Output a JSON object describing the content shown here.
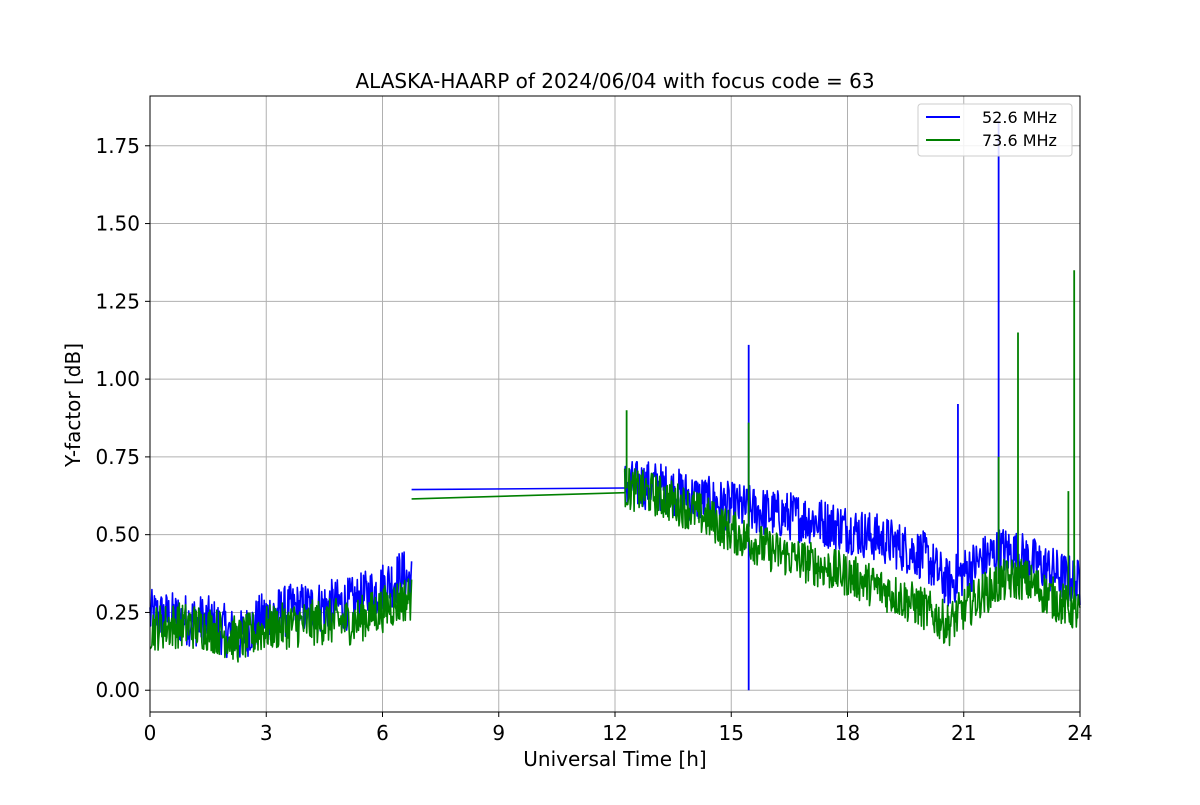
{
  "chart_data": {
    "type": "line",
    "title": "ALASKA-HAARP of 2024/06/04 with focus code = 63",
    "xlabel": "Universal Time [h]",
    "ylabel": "Y-factor [dB]",
    "xlim": [
      0,
      24
    ],
    "ylim": [
      -0.07,
      1.91
    ],
    "xticks": [
      0,
      3,
      6,
      9,
      12,
      15,
      18,
      21,
      24
    ],
    "xtick_labels": [
      "0",
      "3",
      "6",
      "9",
      "12",
      "15",
      "18",
      "21",
      "24"
    ],
    "yticks": [
      0.0,
      0.25,
      0.5,
      0.75,
      1.0,
      1.25,
      1.5,
      1.75
    ],
    "ytick_labels": [
      "0.00",
      "0.25",
      "0.50",
      "0.75",
      "1.00",
      "1.25",
      "1.50",
      "1.75"
    ],
    "grid": true,
    "legend_position": "top-right",
    "series": [
      {
        "name": "52.6 MHz",
        "color": "#0000ff",
        "segments": [
          {
            "x": [
              0.0,
              0.75,
              1.5,
              2.3,
              3.0,
              3.75,
              4.5,
              5.25,
              6.0,
              6.5,
              6.75
            ],
            "y": [
              0.24,
              0.23,
              0.22,
              0.17,
              0.24,
              0.26,
              0.27,
              0.28,
              0.33,
              0.37,
              0.35
            ],
            "noise": 0.085
          },
          {
            "x": [
              6.75,
              12.25
            ],
            "y": [
              0.645,
              0.65
            ],
            "noise": 0
          },
          {
            "x": [
              12.25,
              13.0,
              14.0,
              15.0,
              16.0,
              17.0,
              18.0,
              19.0,
              20.0,
              20.6,
              21.0,
              21.5,
              22.0,
              22.5,
              23.0,
              23.5,
              24.0
            ],
            "y": [
              0.66,
              0.66,
              0.62,
              0.59,
              0.57,
              0.55,
              0.52,
              0.48,
              0.43,
              0.34,
              0.38,
              0.42,
              0.45,
              0.43,
              0.4,
              0.37,
              0.34
            ],
            "noise": 0.08
          }
        ],
        "spikes": [
          [
            15.45,
            1.11
          ],
          [
            15.45,
            0.0
          ],
          [
            20.85,
            0.92
          ],
          [
            21.9,
            1.83
          ]
        ]
      },
      {
        "name": "73.6 MHz",
        "color": "#008000",
        "segments": [
          {
            "x": [
              0.0,
              0.75,
              1.5,
              2.3,
              3.0,
              3.75,
              4.5,
              5.25,
              6.0,
              6.5,
              6.75
            ],
            "y": [
              0.2,
              0.21,
              0.2,
              0.16,
              0.2,
              0.21,
              0.22,
              0.22,
              0.26,
              0.29,
              0.3
            ],
            "noise": 0.075
          },
          {
            "x": [
              6.75,
              12.25
            ],
            "y": [
              0.615,
              0.635
            ],
            "noise": 0
          },
          {
            "x": [
              12.25,
              13.0,
              14.0,
              15.0,
              16.0,
              17.0,
              18.0,
              19.0,
              20.0,
              20.6,
              21.0,
              21.5,
              22.0,
              22.5,
              23.0,
              23.5,
              24.0
            ],
            "y": [
              0.65,
              0.63,
              0.58,
              0.51,
              0.45,
              0.41,
              0.37,
              0.32,
              0.26,
              0.21,
              0.26,
              0.31,
              0.35,
              0.36,
              0.32,
              0.28,
              0.25
            ],
            "noise": 0.07
          }
        ],
        "spikes": [
          [
            12.3,
            0.9
          ],
          [
            15.45,
            0.86
          ],
          [
            21.9,
            0.75
          ],
          [
            22.4,
            1.15
          ],
          [
            23.85,
            1.35
          ],
          [
            23.7,
            0.64
          ]
        ]
      }
    ]
  }
}
